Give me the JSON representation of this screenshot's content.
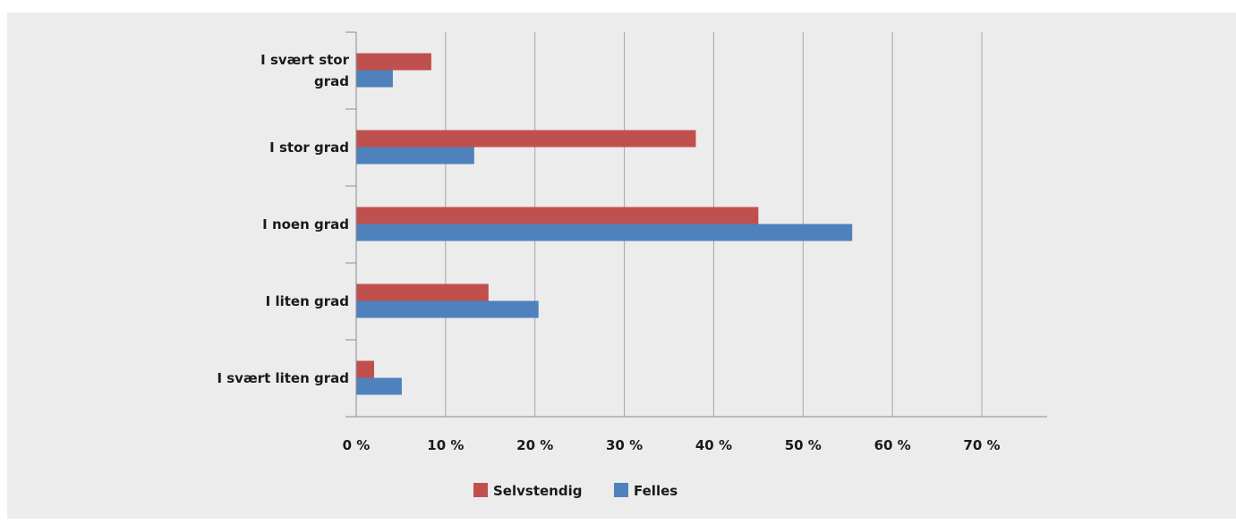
{
  "chart_data": {
    "type": "bar",
    "orientation": "horizontal",
    "title": "",
    "xlabel": "",
    "ylabel": "",
    "categories": [
      "I svært stor grad",
      "I stor grad",
      "I noen grad",
      "I liten grad",
      "I svært liten grad"
    ],
    "category_lines": [
      [
        "I svært stor",
        "grad"
      ],
      [
        "I stor grad"
      ],
      [
        "I noen grad"
      ],
      [
        "I liten grad"
      ],
      [
        "I svært liten grad"
      ]
    ],
    "series": [
      {
        "name": "Selvstendig",
        "color": "#c0504d",
        "values": [
          8.4,
          38.0,
          45.0,
          14.8,
          2.0
        ]
      },
      {
        "name": "Felles",
        "color": "#4f81bd",
        "values": [
          4.1,
          13.2,
          55.5,
          20.4,
          5.1
        ]
      }
    ],
    "xlim": [
      0,
      70
    ],
    "xticks": [
      0,
      10,
      20,
      30,
      40,
      50,
      60,
      70
    ],
    "xtick_labels": [
      "0 %",
      "10 %",
      "20 %",
      "30 %",
      "40 %",
      "50 %",
      "60 %",
      "70 %"
    ],
    "grid": true,
    "legend_position": "bottom-center",
    "background": "#ececec",
    "gridline_color": "#a6a6a6"
  }
}
